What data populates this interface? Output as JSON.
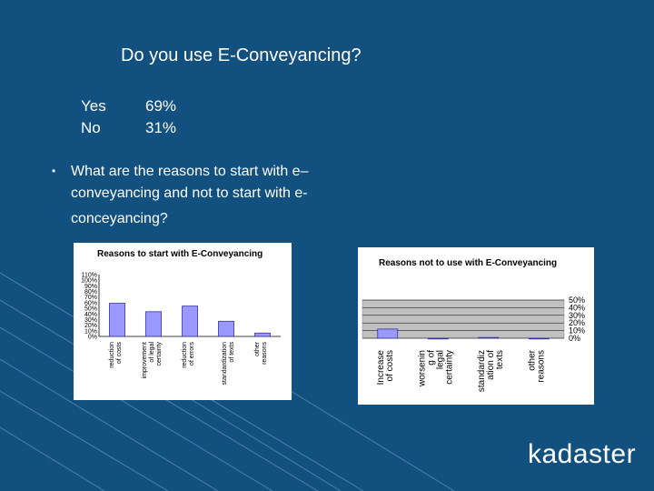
{
  "slide": {
    "title": "Do you use E-Conveyancing?",
    "results": [
      {
        "label": "Yes",
        "value": "69%"
      },
      {
        "label": "No",
        "value": "31%"
      }
    ],
    "bullet": "•",
    "question_lines": [
      "What are the reasons to start with e–",
      "conveyancing and not to start with e-",
      "conceyancing?"
    ],
    "logo": "kadaster"
  },
  "chart_data": [
    {
      "type": "bar",
      "title": "Reasons to start with E-Conveyancing",
      "categories": [
        "reduction of costs",
        "improvement of legal certainty",
        "reduction of errors",
        "standardization of texts",
        "other reasons"
      ],
      "values": [
        59,
        44,
        54,
        27,
        6
      ],
      "ylim": [
        0,
        110
      ],
      "yticks": [
        "110%",
        "100%",
        "90%",
        "80%",
        "70%",
        "60%",
        "50%",
        "40%",
        "30%",
        "20%",
        "10%",
        "0%"
      ],
      "grid": false,
      "colors": {
        "bar": "#9999ff",
        "bar_border": "#333399"
      }
    },
    {
      "type": "bar",
      "title": "Reasons not to use with E-Conveyancing",
      "categories": [
        "Increase of costs",
        "worsenin g of legal certainty",
        "standardiz ation of texts",
        "other reasons"
      ],
      "values": [
        12,
        0,
        1,
        0
      ],
      "ylim": [
        0,
        50
      ],
      "yticks": [
        "50%",
        "40%",
        "30%",
        "20%",
        "10%",
        "0%"
      ],
      "grid": true,
      "colors": {
        "bar": "#9999ff",
        "bar_border": "#333399",
        "plot_bg": "#c0c0c0"
      }
    }
  ]
}
